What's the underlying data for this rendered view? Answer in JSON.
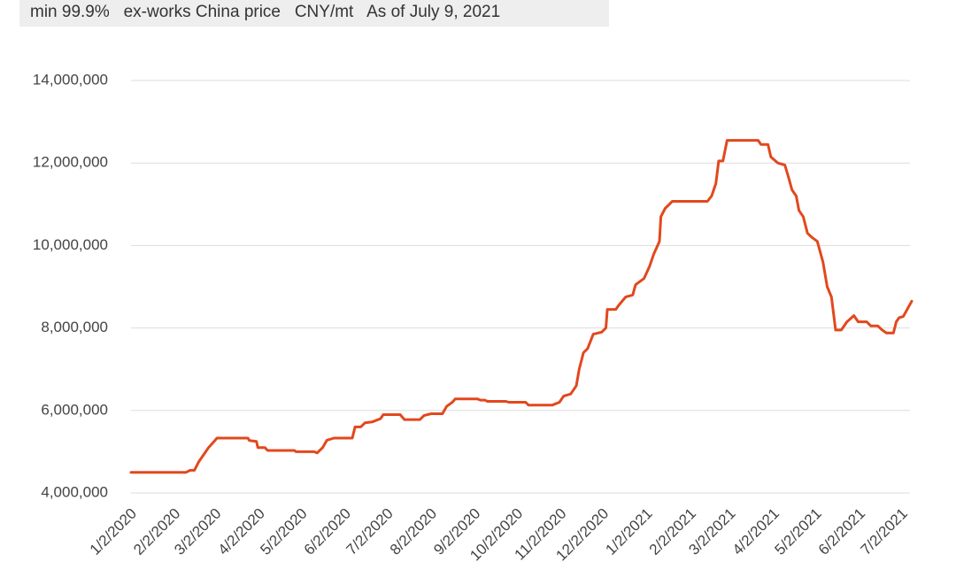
{
  "chart_data": {
    "type": "line",
    "subtitle": "min 99.9%   ex-works China price   CNY/mt   As of July 9, 2021",
    "x": [
      "2020-01-02",
      "2020-02-10",
      "2020-02-13",
      "2020-02-16",
      "2020-02-19",
      "2020-02-26",
      "2020-03-01",
      "2020-03-03",
      "2020-03-25",
      "2020-03-26",
      "2020-03-31",
      "2020-04-01",
      "2020-04-06",
      "2020-04-08",
      "2020-04-27",
      "2020-04-28",
      "2020-05-11",
      "2020-05-13",
      "2020-05-17",
      "2020-05-20",
      "2020-05-25",
      "2020-06-07",
      "2020-06-09",
      "2020-06-13",
      "2020-06-16",
      "2020-06-21",
      "2020-06-27",
      "2020-06-29",
      "2020-07-11",
      "2020-07-14",
      "2020-07-25",
      "2020-07-28",
      "2020-08-02",
      "2020-08-10",
      "2020-08-13",
      "2020-08-17",
      "2020-08-19",
      "2020-09-04",
      "2020-09-06",
      "2020-09-09",
      "2020-09-11",
      "2020-09-24",
      "2020-09-26",
      "2020-10-08",
      "2020-10-10",
      "2020-10-27",
      "2020-11-01",
      "2020-11-04",
      "2020-11-09",
      "2020-11-13",
      "2020-11-15",
      "2020-11-18",
      "2020-11-21",
      "2020-11-25",
      "2020-12-01",
      "2020-12-04",
      "2020-12-05",
      "2020-12-11",
      "2020-12-13",
      "2020-12-18",
      "2020-12-23",
      "2020-12-25",
      "2020-12-31",
      "2021-01-04",
      "2021-01-07",
      "2021-01-11",
      "2021-01-12",
      "2021-01-15",
      "2021-01-18",
      "2021-01-20",
      "2021-02-14",
      "2021-02-17",
      "2021-02-20",
      "2021-02-22",
      "2021-02-25",
      "2021-02-28",
      "2021-03-22",
      "2021-03-24",
      "2021-03-29",
      "2021-03-31",
      "2021-04-05",
      "2021-04-10",
      "2021-04-13",
      "2021-04-15",
      "2021-04-18",
      "2021-04-20",
      "2021-04-23",
      "2021-04-26",
      "2021-04-29",
      "2021-05-03",
      "2021-05-07",
      "2021-05-10",
      "2021-05-13",
      "2021-05-16",
      "2021-05-20",
      "2021-05-24",
      "2021-05-29",
      "2021-06-01",
      "2021-06-07",
      "2021-06-10",
      "2021-06-15",
      "2021-06-18",
      "2021-06-21",
      "2021-06-26",
      "2021-06-28",
      "2021-06-30",
      "2021-07-03",
      "2021-07-09"
    ],
    "values": [
      4500000,
      4500000,
      4550000,
      4550000,
      4750000,
      5100000,
      5250000,
      5330000,
      5330000,
      5270000,
      5250000,
      5100000,
      5100000,
      5030000,
      5030000,
      5000000,
      5000000,
      4970000,
      5100000,
      5280000,
      5330000,
      5330000,
      5600000,
      5600000,
      5700000,
      5720000,
      5800000,
      5900000,
      5900000,
      5780000,
      5780000,
      5880000,
      5920000,
      5920000,
      6100000,
      6200000,
      6280000,
      6280000,
      6250000,
      6250000,
      6220000,
      6220000,
      6200000,
      6200000,
      6130000,
      6130000,
      6200000,
      6350000,
      6400000,
      6600000,
      7000000,
      7400000,
      7500000,
      7850000,
      7900000,
      8000000,
      8450000,
      8450000,
      8550000,
      8750000,
      8800000,
      9050000,
      9200000,
      9500000,
      9800000,
      10100000,
      10700000,
      10900000,
      11000000,
      11070000,
      11070000,
      11200000,
      11500000,
      12050000,
      12050000,
      12550000,
      12550000,
      12450000,
      12450000,
      12150000,
      12000000,
      11950000,
      11600000,
      11350000,
      11200000,
      10850000,
      10700000,
      10300000,
      10200000,
      10100000,
      9600000,
      9000000,
      8750000,
      7950000,
      7950000,
      8150000,
      8300000,
      8150000,
      8150000,
      8050000,
      8050000,
      7950000,
      7880000,
      7880000,
      8150000,
      8250000,
      8280000,
      8650000
    ],
    "color": "#e2481d",
    "xlim": [
      "2020-01-02",
      "2021-07-09"
    ],
    "xticks": [
      {
        "value": "2020-01-02",
        "label": "1/2/2020"
      },
      {
        "value": "2020-02-02",
        "label": "2/2/2020"
      },
      {
        "value": "2020-03-02",
        "label": "3/2/2020"
      },
      {
        "value": "2020-04-02",
        "label": "4/2/2020"
      },
      {
        "value": "2020-05-02",
        "label": "5/2/2020"
      },
      {
        "value": "2020-06-02",
        "label": "6/2/2020"
      },
      {
        "value": "2020-07-02",
        "label": "7/2/2020"
      },
      {
        "value": "2020-08-02",
        "label": "8/2/2020"
      },
      {
        "value": "2020-09-02",
        "label": "9/2/2020"
      },
      {
        "value": "2020-10-02",
        "label": "10/2/2020"
      },
      {
        "value": "2020-11-02",
        "label": "11/2/2020"
      },
      {
        "value": "2020-12-02",
        "label": "12/2/2020"
      },
      {
        "value": "2021-01-02",
        "label": "1/2/2021"
      },
      {
        "value": "2021-02-02",
        "label": "2/2/2021"
      },
      {
        "value": "2021-03-02",
        "label": "3/2/2021"
      },
      {
        "value": "2021-04-02",
        "label": "4/2/2021"
      },
      {
        "value": "2021-05-02",
        "label": "5/2/2021"
      },
      {
        "value": "2021-06-02",
        "label": "6/2/2021"
      },
      {
        "value": "2021-07-02",
        "label": "7/2/2021"
      }
    ],
    "ylim": [
      4000000,
      14000000
    ],
    "yticks": [
      {
        "value": 4000000,
        "label": "4,000,000"
      },
      {
        "value": 6000000,
        "label": "6,000,000"
      },
      {
        "value": 8000000,
        "label": "8,000,000"
      },
      {
        "value": 10000000,
        "label": "10,000,000"
      },
      {
        "value": 12000000,
        "label": "12,000,000"
      },
      {
        "value": 14000000,
        "label": "14,000,000"
      }
    ],
    "grid": true
  }
}
